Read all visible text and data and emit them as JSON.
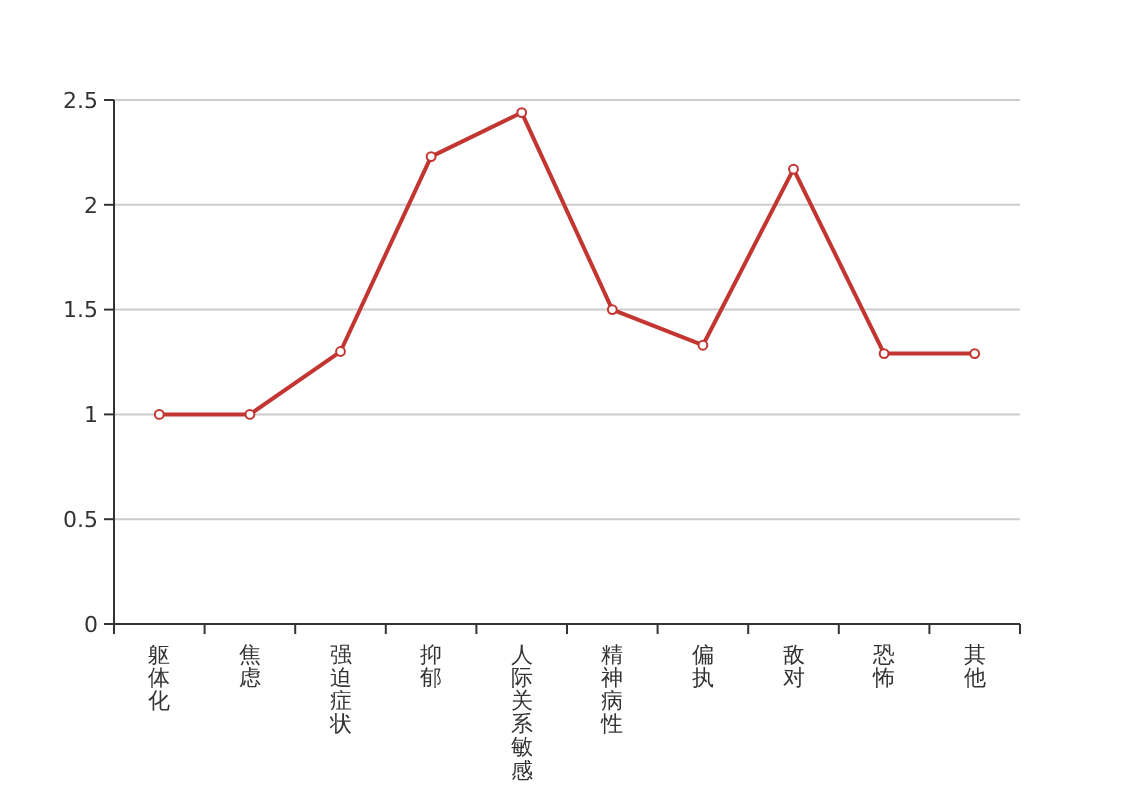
{
  "chart_data": {
    "type": "line",
    "categories": [
      "躯体化",
      "焦虑",
      "强迫症状",
      "抑郁",
      "人际关系敏感",
      "精神病性",
      "偏执",
      "敌对",
      "恐怖",
      "其他"
    ],
    "series": [
      {
        "color": "#c23531",
        "values": [
          1.0,
          1.0,
          1.3,
          2.23,
          2.44,
          1.5,
          1.33,
          2.17,
          1.29,
          1.29
        ]
      }
    ],
    "ylim": [
      0,
      2.5
    ],
    "yticks": [
      0,
      0.5,
      1,
      1.5,
      2,
      2.5
    ],
    "grid": "y",
    "marker": "circle"
  }
}
